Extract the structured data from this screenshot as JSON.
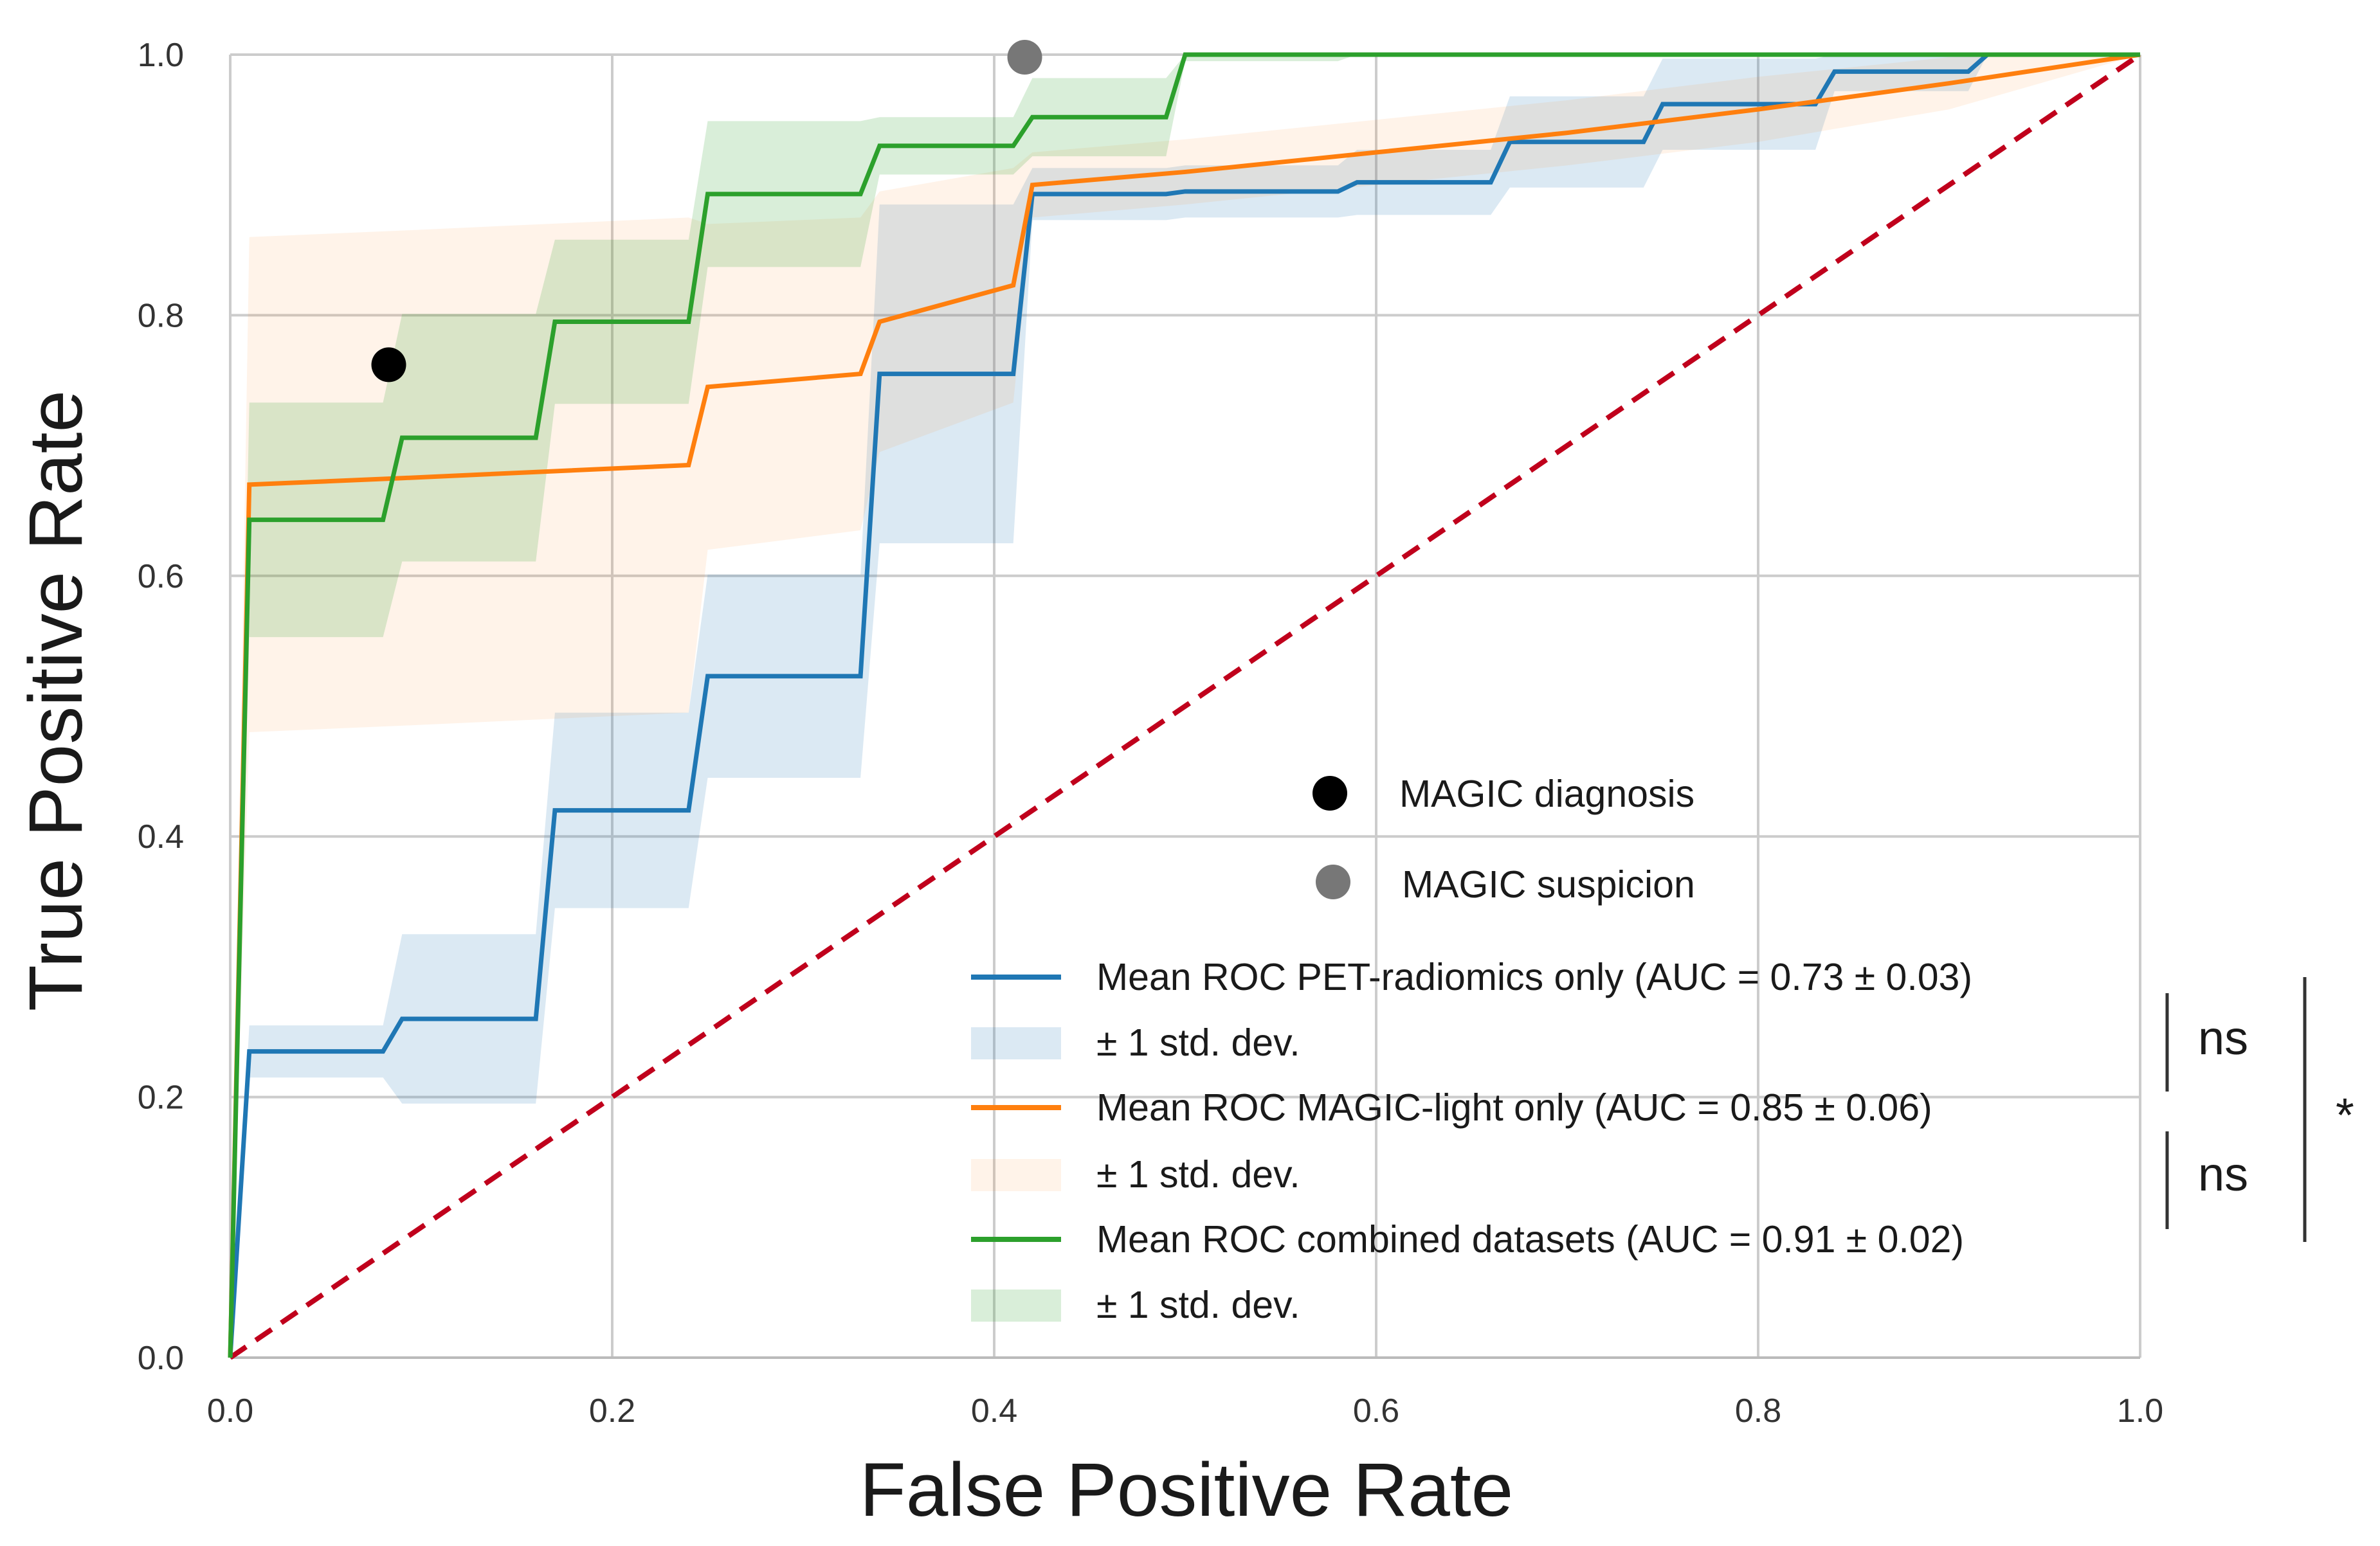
{
  "chart_data": {
    "type": "line",
    "title": "",
    "xlabel": "False Positive Rate",
    "ylabel": "True Positive Rate",
    "xlim": [
      0,
      1
    ],
    "ylim": [
      0,
      1
    ],
    "grid": true,
    "xticks": [
      "0.0",
      "0.2",
      "0.4",
      "0.6",
      "0.8",
      "1.0"
    ],
    "yticks": [
      "0.0",
      "0.2",
      "0.4",
      "0.6",
      "0.8",
      "1.0"
    ],
    "colors": {
      "pet": "#1f77b4",
      "magic": "#ff7f0e",
      "combined": "#2ca02c",
      "chance": "#c0001c",
      "diagnosis": "#000000",
      "suspicion": "#777777"
    },
    "series": [
      {
        "key": "pet",
        "name": "Mean ROC PET-radiomics only (AUC = 0.73 ± 0.03)",
        "band_label": "± 1 std. dev.",
        "x": [
          0,
          0.01,
          0.01,
          0.08,
          0.09,
          0.16,
          0.17,
          0.24,
          0.25,
          0.33,
          0.34,
          0.41,
          0.42,
          0.49,
          0.5,
          0.58,
          0.59,
          0.66,
          0.67,
          0.74,
          0.75,
          0.83,
          0.84,
          0.91,
          0.92,
          1.0
        ],
        "y": [
          0,
          0.235,
          0.235,
          0.235,
          0.26,
          0.26,
          0.42,
          0.42,
          0.523,
          0.523,
          0.755,
          0.755,
          0.893,
          0.893,
          0.895,
          0.895,
          0.902,
          0.902,
          0.933,
          0.933,
          0.962,
          0.962,
          0.987,
          0.987,
          1.0,
          1.0
        ],
        "std": [
          0,
          0.02,
          0.02,
          0.02,
          0.065,
          0.065,
          0.075,
          0.075,
          0.078,
          0.078,
          0.13,
          0.13,
          0.02,
          0.02,
          0.02,
          0.02,
          0.025,
          0.025,
          0.035,
          0.035,
          0.035,
          0.035,
          0.015,
          0.015,
          0,
          0
        ]
      },
      {
        "key": "magic",
        "name": "Mean ROC MAGIC-light only (AUC = 0.85 ± 0.06)",
        "band_label": "± 1 std. dev.",
        "x": [
          0,
          0.01,
          0.09,
          0.24,
          0.25,
          0.33,
          0.34,
          0.41,
          0.42,
          0.5,
          0.6,
          0.7,
          0.8,
          0.9,
          1.0
        ],
        "y": [
          0,
          0.67,
          0.675,
          0.685,
          0.745,
          0.755,
          0.795,
          0.823,
          0.9,
          0.91,
          0.925,
          0.94,
          0.958,
          0.978,
          1.0
        ],
        "std": [
          0,
          0.19,
          0.19,
          0.19,
          0.125,
          0.12,
          0.1,
          0.09,
          0.025,
          0.025,
          0.025,
          0.025,
          0.025,
          0.02,
          0
        ]
      },
      {
        "key": "combined",
        "name": "Mean ROC combined datasets (AUC = 0.91 ± 0.02)",
        "band_label": "± 1 std. dev.",
        "x": [
          0,
          0.01,
          0.08,
          0.09,
          0.16,
          0.17,
          0.24,
          0.25,
          0.33,
          0.34,
          0.41,
          0.42,
          0.49,
          0.5,
          0.58,
          0.59,
          1.0
        ],
        "y": [
          0,
          0.643,
          0.643,
          0.706,
          0.706,
          0.795,
          0.795,
          0.893,
          0.893,
          0.93,
          0.93,
          0.952,
          0.952,
          1.0,
          1.0,
          1.0,
          1.0
        ],
        "std": [
          0,
          0.09,
          0.09,
          0.095,
          0.095,
          0.063,
          0.063,
          0.056,
          0.056,
          0.022,
          0.022,
          0.03,
          0.03,
          0.005,
          0.005,
          0,
          0
        ]
      }
    ],
    "chance_line": {
      "x": [
        0,
        1
      ],
      "y": [
        0,
        1
      ]
    },
    "points": [
      {
        "key": "diagnosis",
        "label": "MAGIC diagnosis",
        "x": 0.083,
        "y": 0.762
      },
      {
        "key": "suspicion",
        "label": "MAGIC suspicion",
        "x": 0.416,
        "y": 0.998
      }
    ],
    "significance": [
      {
        "between": "PET-radiomics vs MAGIC-light",
        "label": "ns"
      },
      {
        "between": "MAGIC-light vs combined",
        "label": "ns"
      },
      {
        "between": "PET-radiomics vs combined",
        "label": "*"
      }
    ]
  }
}
